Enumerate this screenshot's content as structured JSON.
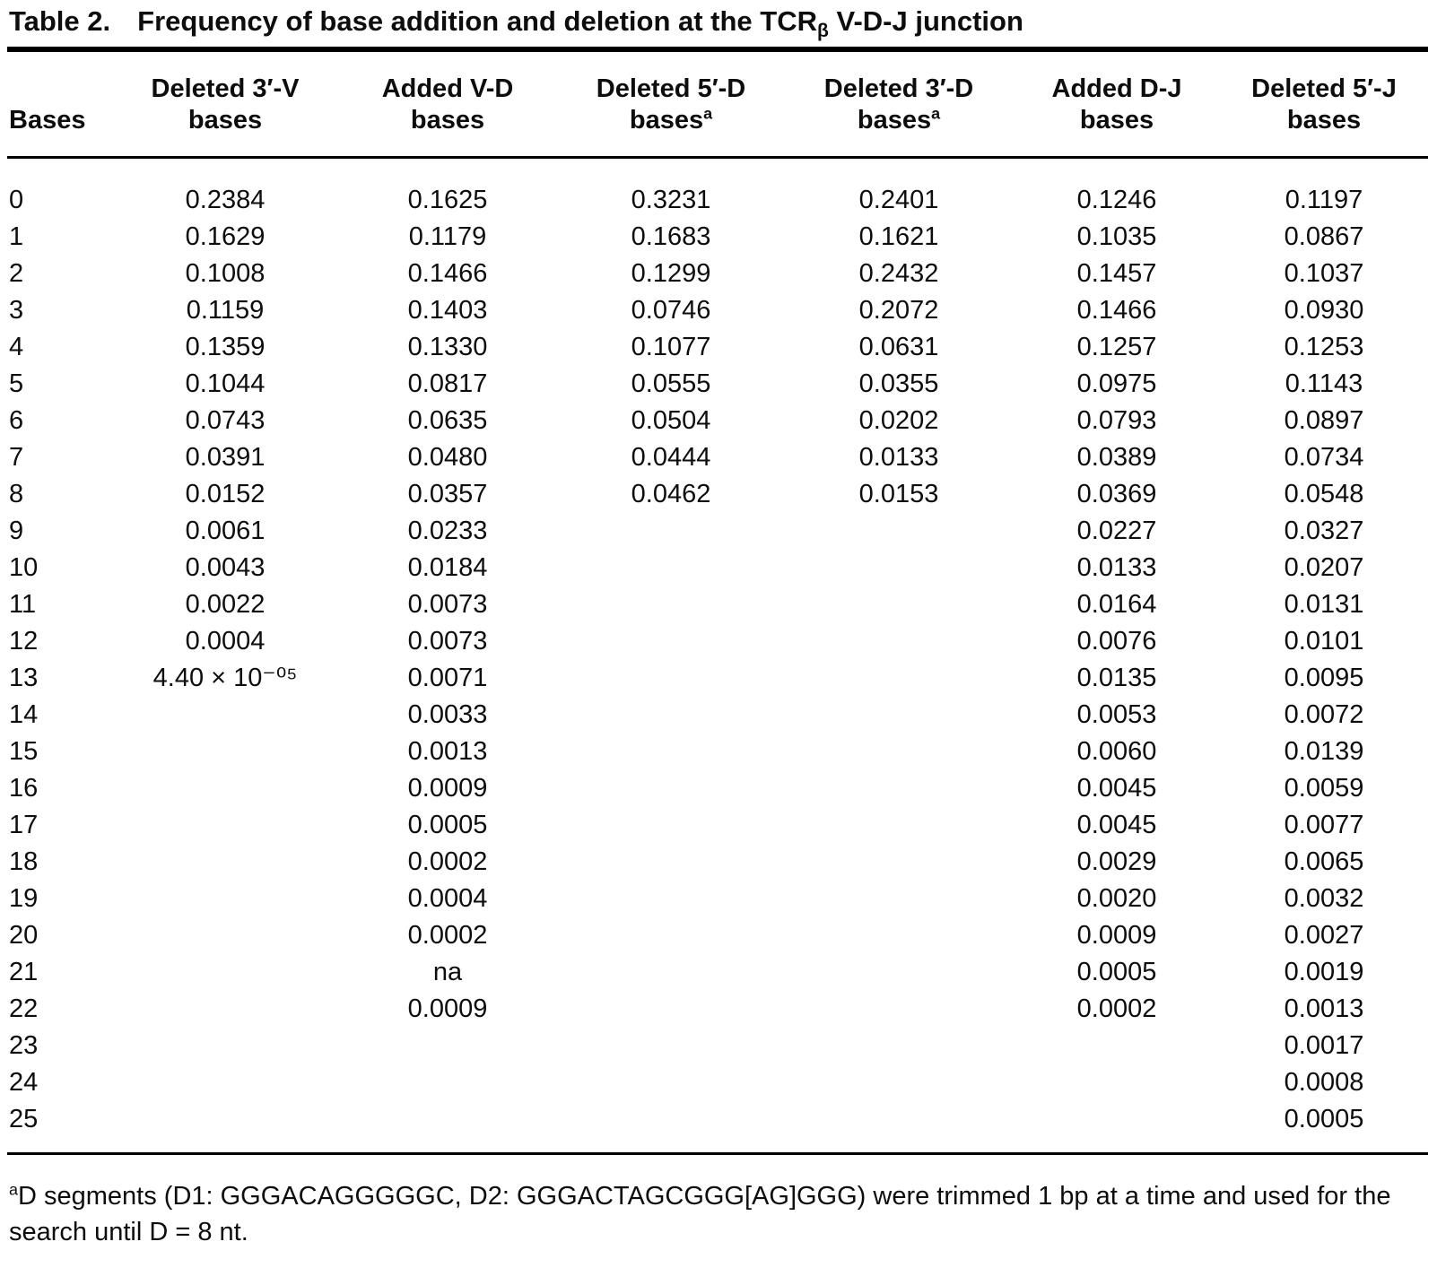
{
  "page": {
    "background_color": "#ffffff",
    "text_color": "#0d0d0d"
  },
  "caption": {
    "label": "Table 2.",
    "text_before": "Frequency of base addition and deletion at the TCR",
    "subscript": "β",
    "text_after": " V-D-J junction"
  },
  "table": {
    "columns": [
      {
        "line1": "",
        "line2": "Bases",
        "sup": ""
      },
      {
        "line1": "Deleted 3′-V",
        "line2": "bases",
        "sup": ""
      },
      {
        "line1": "Added V-D",
        "line2": "bases",
        "sup": ""
      },
      {
        "line1": "Deleted 5′-D",
        "line2": "bases",
        "sup": "a"
      },
      {
        "line1": "Deleted 3′-D",
        "line2": "bases",
        "sup": "a"
      },
      {
        "line1": "Added D-J",
        "line2": "bases",
        "sup": ""
      },
      {
        "line1": "Deleted 5′-J",
        "line2": "bases",
        "sup": ""
      }
    ],
    "rows": [
      {
        "bases": "0",
        "values": [
          "0.2384",
          "0.1625",
          "0.3231",
          "0.2401",
          "0.1246",
          "0.1197"
        ]
      },
      {
        "bases": "1",
        "values": [
          "0.1629",
          "0.1179",
          "0.1683",
          "0.1621",
          "0.1035",
          "0.0867"
        ]
      },
      {
        "bases": "2",
        "values": [
          "0.1008",
          "0.1466",
          "0.1299",
          "0.2432",
          "0.1457",
          "0.1037"
        ]
      },
      {
        "bases": "3",
        "values": [
          "0.1159",
          "0.1403",
          "0.0746",
          "0.2072",
          "0.1466",
          "0.0930"
        ]
      },
      {
        "bases": "4",
        "values": [
          "0.1359",
          "0.1330",
          "0.1077",
          "0.0631",
          "0.1257",
          "0.1253"
        ]
      },
      {
        "bases": "5",
        "values": [
          "0.1044",
          "0.0817",
          "0.0555",
          "0.0355",
          "0.0975",
          "0.1143"
        ]
      },
      {
        "bases": "6",
        "values": [
          "0.0743",
          "0.0635",
          "0.0504",
          "0.0202",
          "0.0793",
          "0.0897"
        ]
      },
      {
        "bases": "7",
        "values": [
          "0.0391",
          "0.0480",
          "0.0444",
          "0.0133",
          "0.0389",
          "0.0734"
        ]
      },
      {
        "bases": "8",
        "values": [
          "0.0152",
          "0.0357",
          "0.0462",
          "0.0153",
          "0.0369",
          "0.0548"
        ]
      },
      {
        "bases": "9",
        "values": [
          "0.0061",
          "0.0233",
          "",
          "",
          "0.0227",
          "0.0327"
        ]
      },
      {
        "bases": "10",
        "values": [
          "0.0043",
          "0.0184",
          "",
          "",
          "0.0133",
          "0.0207"
        ]
      },
      {
        "bases": "11",
        "values": [
          "0.0022",
          "0.0073",
          "",
          "",
          "0.0164",
          "0.0131"
        ]
      },
      {
        "bases": "12",
        "values": [
          "0.0004",
          "0.0073",
          "",
          "",
          "0.0076",
          "0.0101"
        ]
      },
      {
        "bases": "13",
        "values": [
          "4.40 × 10⁻⁰⁵",
          "0.0071",
          "",
          "",
          "0.0135",
          "0.0095"
        ]
      },
      {
        "bases": "14",
        "values": [
          "",
          "0.0033",
          "",
          "",
          "0.0053",
          "0.0072"
        ]
      },
      {
        "bases": "15",
        "values": [
          "",
          "0.0013",
          "",
          "",
          "0.0060",
          "0.0139"
        ]
      },
      {
        "bases": "16",
        "values": [
          "",
          "0.0009",
          "",
          "",
          "0.0045",
          "0.0059"
        ]
      },
      {
        "bases": "17",
        "values": [
          "",
          "0.0005",
          "",
          "",
          "0.0045",
          "0.0077"
        ]
      },
      {
        "bases": "18",
        "values": [
          "",
          "0.0002",
          "",
          "",
          "0.0029",
          "0.0065"
        ]
      },
      {
        "bases": "19",
        "values": [
          "",
          "0.0004",
          "",
          "",
          "0.0020",
          "0.0032"
        ]
      },
      {
        "bases": "20",
        "values": [
          "",
          "0.0002",
          "",
          "",
          "0.0009",
          "0.0027"
        ]
      },
      {
        "bases": "21",
        "values": [
          "",
          "na",
          "",
          "",
          "0.0005",
          "0.0019"
        ]
      },
      {
        "bases": "22",
        "values": [
          "",
          "0.0009",
          "",
          "",
          "0.0002",
          "0.0013"
        ]
      },
      {
        "bases": "23",
        "values": [
          "",
          "",
          "",
          "",
          "",
          "0.0017"
        ]
      },
      {
        "bases": "24",
        "values": [
          "",
          "",
          "",
          "",
          "",
          "0.0008"
        ]
      },
      {
        "bases": "25",
        "values": [
          "",
          "",
          "",
          "",
          "",
          "0.0005"
        ]
      }
    ]
  },
  "footnote": {
    "sup": "a",
    "text": "D segments (D1: GGGACAGGGGGC, D2: GGGACTAGCGGG[AG]GGG) were trimmed 1 bp at a time and used for the search until D = 8 nt."
  }
}
